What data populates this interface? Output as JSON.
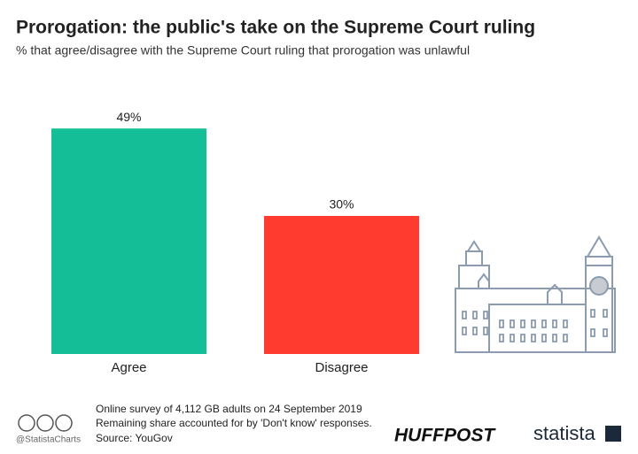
{
  "chart_data": {
    "type": "bar",
    "title": "Prorogation: the public's take on the Supreme Court ruling",
    "subtitle": "% that agree/disagree with the Supreme Court ruling that prorogation was unlawful",
    "categories": [
      "Agree",
      "Disagree"
    ],
    "values": [
      49,
      30
    ],
    "value_labels": [
      "49%",
      "30%"
    ],
    "colors": [
      "#14bf98",
      "#ff3b30"
    ],
    "notes": [
      "Online survey of 4,112 GB adults on 24 September 2019",
      "Remaining share accounted for by 'Don't know' responses."
    ],
    "source": "Source: YouGov"
  },
  "footer": {
    "handle": "@StatistaCharts",
    "partner": "HUFFPOST",
    "brand": "statista"
  }
}
